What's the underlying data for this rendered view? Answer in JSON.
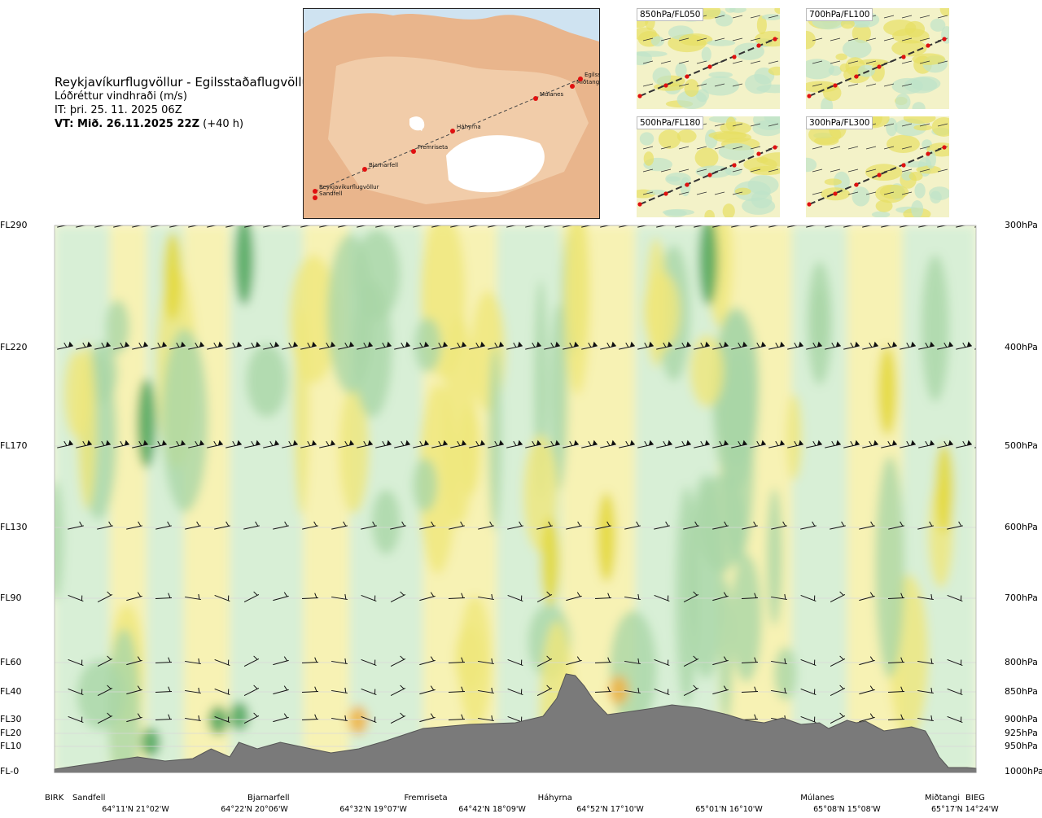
{
  "header": {
    "route": "Reykjavíkurflugvöllur - Egilsstaðaflugvöllur",
    "variable": "Lóðréttur vindhraði (m/s)",
    "issue_time": "IT: þri. 25. 11. 2025 06Z",
    "valid_prefix": "VT: Mið. 26.11.2025 22Z",
    "valid_suffix": "(+40 h)"
  },
  "map": {
    "waypoints": [
      "Reykjavíkurflugvöllur",
      "Sandfell",
      "Bjarnarfell",
      "Fremriseta",
      "Háhyrna",
      "Múlanes",
      "Miðtangi",
      "Egilsstaðir"
    ]
  },
  "insets": [
    {
      "label": "850hPa/FL050"
    },
    {
      "label": "700hPa/FL100"
    },
    {
      "label": "500hPa/FL180"
    },
    {
      "label": "300hPa/FL300"
    }
  ],
  "chart_data": {
    "type": "heatmap",
    "title": "Lóðréttur vindhraði (m/s)",
    "levels_left": [
      {
        "label": "FL290",
        "hpa": 300
      },
      {
        "label": "FL220",
        "hpa": 400
      },
      {
        "label": "FL170",
        "hpa": 500
      },
      {
        "label": "FL130",
        "hpa": 600
      },
      {
        "label": "FL90",
        "hpa": 700
      },
      {
        "label": "FL60",
        "hpa": 800
      },
      {
        "label": "FL40",
        "hpa": 850
      },
      {
        "label": "FL30",
        "hpa": 900
      },
      {
        "label": "FL20",
        "hpa": 925
      },
      {
        "label": "FL10",
        "hpa": 950
      },
      {
        "label": "FL-0",
        "hpa": 1000
      }
    ],
    "levels_right": [
      "300hPa",
      "400hPa",
      "500hPa",
      "600hPa",
      "700hPa",
      "800hPa",
      "850hPa",
      "900hPa",
      "925hPa",
      "950hPa",
      "1000hPa"
    ],
    "waypoints": [
      {
        "name": "BIRK",
        "pos": 0.0
      },
      {
        "name": "Sandfell",
        "pos": 0.03
      },
      {
        "name": "Bjarnarfell",
        "pos": 0.22
      },
      {
        "name": "Fremriseta",
        "pos": 0.39
      },
      {
        "name": "Háhyrna",
        "pos": 0.535
      },
      {
        "name": "Múlanes",
        "pos": 0.82
      },
      {
        "name": "Miðtangi",
        "pos": 0.955
      },
      {
        "name": "BIEG",
        "pos": 1.0
      }
    ],
    "coords": [
      {
        "label": "64°11'N 21°02'W",
        "pos": 0.085
      },
      {
        "label": "64°22'N 20°06'W",
        "pos": 0.214
      },
      {
        "label": "64°32'N 19°07'W",
        "pos": 0.343
      },
      {
        "label": "64°42'N 18°09'W",
        "pos": 0.472
      },
      {
        "label": "64°52'N 17°10'W",
        "pos": 0.6
      },
      {
        "label": "65°01'N 16°10'W",
        "pos": 0.729
      },
      {
        "label": "65°08'N 15°08'W",
        "pos": 0.857
      },
      {
        "label": "65°17'N 14°24'W",
        "pos": 0.985
      }
    ],
    "legend": "none",
    "grid": false
  },
  "colors": {
    "updraft_light": "#f7f2b4",
    "updraft_mid": "#efe67a",
    "updraft_strong": "#e3d83a",
    "updraft_orange": "#f0b140",
    "downdraft_light": "#d8efd6",
    "downdraft_mid": "#a9d6a6",
    "downdraft_strong": "#4ea55a",
    "terrain": "#7a7a7a"
  }
}
